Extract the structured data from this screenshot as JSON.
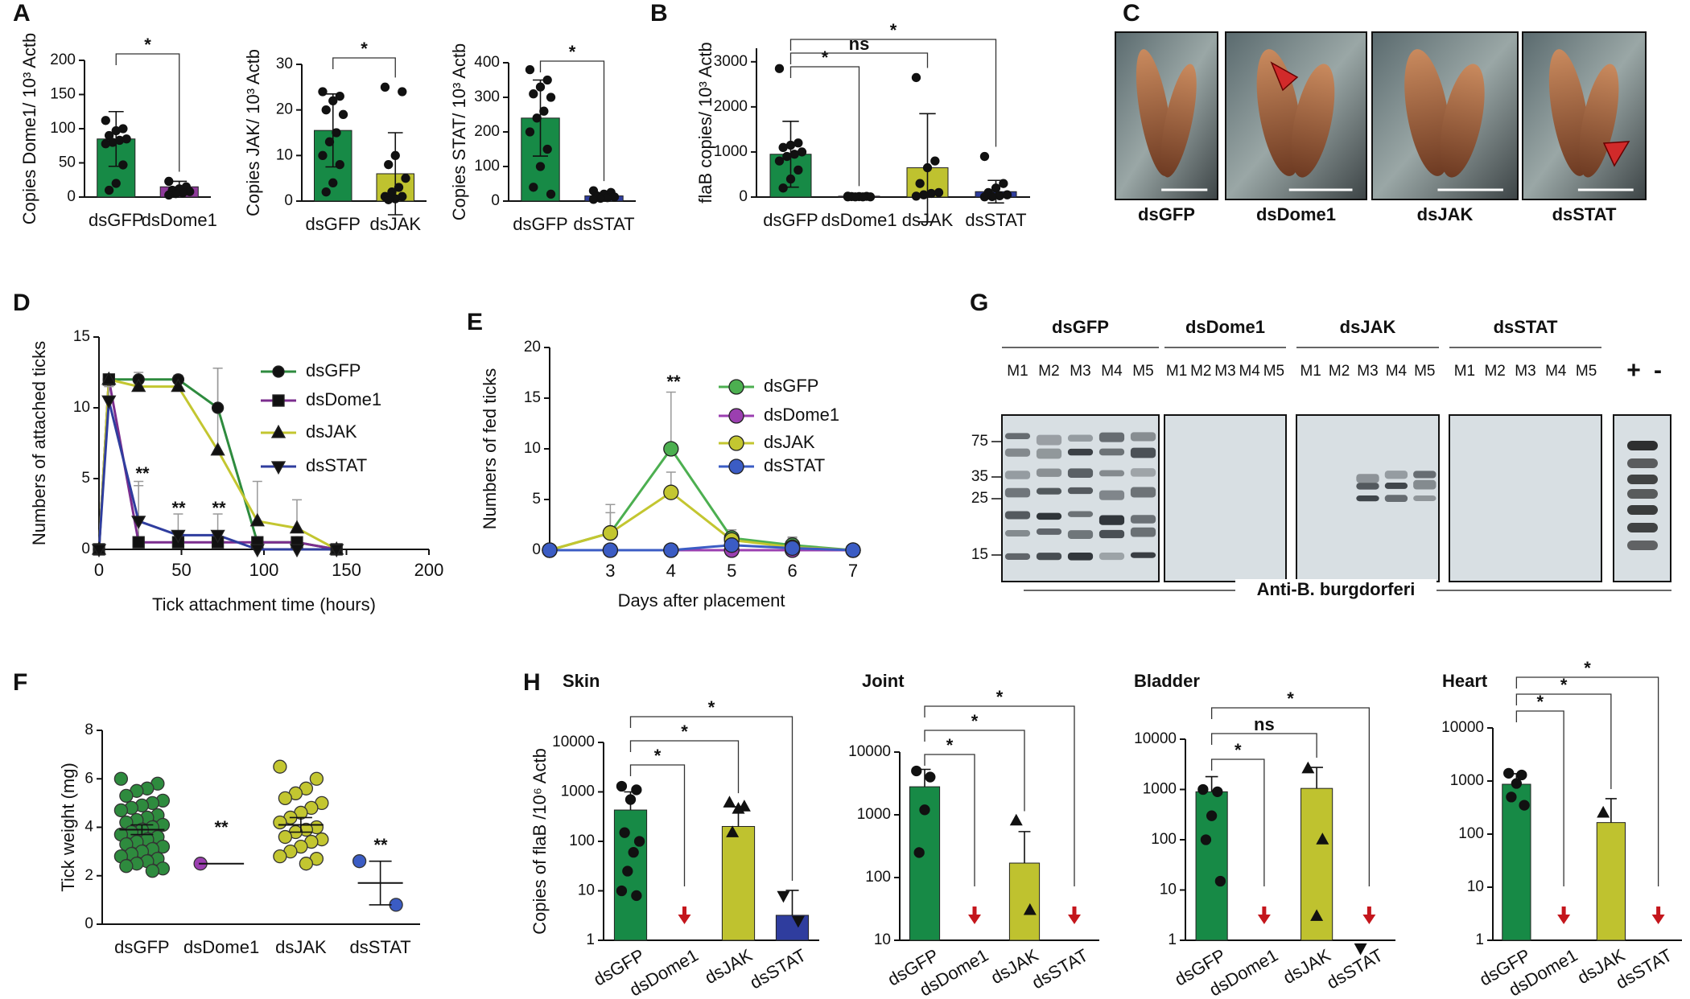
{
  "chart_data": [
    {
      "type": "bar",
      "panel": "A",
      "ylabel": "Copies Dome1/ 10³ Actb",
      "categories": [
        "dsGFP",
        "dsDome1"
      ],
      "values": [
        85,
        15
      ],
      "errors": [
        40,
        8
      ],
      "colors": [
        "#178a46",
        "#8e3a9a"
      ],
      "points": [
        [
          112,
          100,
          97,
          90,
          85,
          83,
          80,
          78,
          47,
          20,
          10
        ],
        [
          23,
          15,
          12,
          10,
          8,
          6,
          5,
          3
        ]
      ],
      "ylim": [
        0,
        200
      ],
      "yticks": [
        0,
        50,
        100,
        150,
        200
      ],
      "brackets": [
        "*"
      ]
    },
    {
      "type": "bar",
      "ylabel": "Copies JAK/ 10³ Actb",
      "categories": [
        "dsGFP",
        "dsJAK"
      ],
      "values": [
        15.5,
        6
      ],
      "errors": [
        8,
        9
      ],
      "colors": [
        "#178a46",
        "#bfc22f"
      ],
      "points": [
        [
          24,
          23,
          22,
          20,
          19,
          15,
          13,
          10,
          8,
          4,
          2
        ],
        [
          25,
          24,
          10,
          8,
          5,
          3,
          2,
          1,
          1,
          0.5,
          0.3
        ]
      ],
      "ylim": [
        0,
        30
      ],
      "yticks": [
        0,
        10,
        20,
        30
      ],
      "brackets": [
        "*"
      ]
    },
    {
      "type": "bar",
      "ylabel": "Copies STAT/ 10³ Actb",
      "categories": [
        "dsGFP",
        "dsSTAT"
      ],
      "values": [
        240,
        15
      ],
      "errors": [
        110,
        8
      ],
      "colors": [
        "#178a46",
        "#2f3d9e"
      ],
      "points": [
        [
          380,
          350,
          330,
          310,
          300,
          260,
          240,
          200,
          150,
          100,
          40,
          20
        ],
        [
          30,
          25,
          20,
          15,
          12,
          10,
          8,
          5
        ]
      ],
      "ylim": [
        0,
        400
      ],
      "yticks": [
        0,
        100,
        200,
        300,
        400
      ],
      "brackets": [
        "*"
      ]
    },
    {
      "type": "bar",
      "panel": "B",
      "ylabel": "flaB copies/ 10³ Actb",
      "categories": [
        "dsGFP",
        "dsDome1",
        "dsJAK",
        "dsSTAT"
      ],
      "values": [
        950,
        20,
        650,
        120
      ],
      "errors": [
        730,
        10,
        1200,
        250
      ],
      "colors": [
        "#178a46",
        "#8e3a9a",
        "#bfc22f",
        "#2f3d9e"
      ],
      "points": [
        [
          2850,
          1200,
          1150,
          1100,
          1000,
          950,
          900,
          800,
          600,
          400,
          200
        ],
        [
          20,
          15,
          10,
          10,
          5,
          5,
          5,
          5
        ],
        [
          2650,
          800,
          650,
          300,
          100,
          80,
          50,
          20
        ],
        [
          900,
          300,
          200,
          100,
          50,
          30,
          10,
          5
        ]
      ],
      "ylim": [
        0,
        3300
      ],
      "yticks": [
        0,
        1000,
        2000,
        3000
      ],
      "brackets": [
        "*",
        "ns",
        "*"
      ]
    },
    {
      "type": "line",
      "panel": "D",
      "ylabel": "Numbers of attached ticks",
      "xlabel": "Tick attachment time (hours)",
      "x": [
        0,
        6,
        24,
        48,
        72,
        96,
        120,
        144
      ],
      "xlim": [
        0,
        200
      ],
      "xticks": [
        0,
        50,
        100,
        150,
        200
      ],
      "ylim": [
        0,
        15
      ],
      "yticks": [
        0,
        5,
        10,
        15
      ],
      "marker_fill": "#111111",
      "series": [
        {
          "name": "dsGFP",
          "color": "#2e8b3e",
          "marker": "circle",
          "values": [
            0,
            12,
            12,
            12,
            10,
            0.5,
            0.5,
            0
          ],
          "errors": [
            null,
            0.3,
            0.5,
            0.3,
            2.8,
            null,
            null,
            null
          ]
        },
        {
          "name": "dsDome1",
          "color": "#7b2d8e",
          "marker": "square",
          "values": [
            0,
            12,
            0.5,
            0.5,
            0.5,
            0.5,
            0.5,
            0
          ],
          "errors": [
            null,
            0.3,
            4.3,
            null,
            null,
            null,
            null,
            null
          ]
        },
        {
          "name": "dsJAK",
          "color": "#c3c630",
          "marker": "triangle",
          "values": [
            0,
            12,
            11.5,
            11.5,
            7,
            2,
            1.5,
            0
          ],
          "errors": [
            null,
            0.3,
            0.6,
            0.5,
            5.8,
            2.8,
            2,
            null
          ]
        },
        {
          "name": "dsSTAT",
          "color": "#2f3d9e",
          "marker": "triangle-down",
          "values": [
            0,
            10.5,
            2,
            1,
            1,
            0,
            0,
            0
          ],
          "errors": [
            null,
            1,
            2.5,
            1.5,
            1.5,
            null,
            null,
            null
          ]
        }
      ],
      "annotations": [
        "**",
        "**",
        "**"
      ]
    },
    {
      "type": "line",
      "panel": "E",
      "ylabel": "Numbers of fed ticks",
      "xlabel": "Days after placement",
      "x": [
        2,
        3,
        4,
        5,
        6,
        7
      ],
      "xlim": [
        2,
        7
      ],
      "xticks": [
        3,
        4,
        5,
        6,
        7
      ],
      "ylim": [
        0,
        20
      ],
      "yticks": [
        0,
        5,
        10,
        15,
        20
      ],
      "series": [
        {
          "name": "dsGFP",
          "color": "#4caf50",
          "marker": "circle",
          "values": [
            0,
            1.7,
            10,
            1.2,
            0.5,
            0
          ],
          "errors": [
            null,
            2.8,
            5.6,
            0.8,
            0.7,
            null
          ]
        },
        {
          "name": "dsDome1",
          "color": "#9b3fb0",
          "marker": "circle",
          "values": [
            0,
            0,
            0,
            0,
            0,
            0
          ],
          "errors": [
            null,
            null,
            null,
            null,
            null,
            null
          ]
        },
        {
          "name": "dsJAK",
          "color": "#c3c630",
          "marker": "circle",
          "values": [
            0,
            1.7,
            5.7,
            1,
            0.3,
            0
          ],
          "errors": [
            null,
            2,
            2,
            0.7,
            1,
            null
          ]
        },
        {
          "name": "dsSTAT",
          "color": "#3b5cc4",
          "marker": "circle",
          "values": [
            0,
            0,
            0,
            0.5,
            0.2,
            0
          ],
          "errors": [
            null,
            null,
            null,
            0.5,
            0.6,
            null
          ]
        }
      ],
      "annotations": [
        "**"
      ]
    },
    {
      "type": "strip",
      "panel": "F",
      "ylabel": "Tick weight (mg)",
      "categories": [
        "dsGFP",
        "dsDome1",
        "dsJAK",
        "dsSTAT"
      ],
      "colors": [
        "#2e8b3e",
        "#9b3fb0",
        "#c3c630",
        "#3b5cc4"
      ],
      "values": [
        3.9,
        2.5,
        4.1,
        1.7
      ],
      "errors": [
        0.2,
        null,
        0.3,
        0.9
      ],
      "points": [
        [
          6,
          5.8,
          5.6,
          5.5,
          5.3,
          5.1,
          5,
          4.9,
          4.8,
          4.7,
          4.5,
          4.4,
          4.3,
          4.2,
          4.1,
          4,
          3.9,
          3.8,
          3.7,
          3.6,
          3.5,
          3.4,
          3.3,
          3.2,
          3.1,
          3,
          2.9,
          2.8,
          2.7,
          2.6,
          2.5,
          2.4,
          2.3,
          2.2
        ],
        [
          2.5
        ],
        [
          6.5,
          6,
          5.6,
          5.4,
          5.2,
          5,
          4.8,
          4.6,
          4.4,
          4.2,
          4,
          3.9,
          3.8,
          3.6,
          3.5,
          3.4,
          3.2,
          3,
          2.8,
          2.7,
          2.5
        ],
        [
          2.6,
          0.8
        ]
      ],
      "ylim": [
        0,
        8
      ],
      "yticks": [
        0,
        2,
        4,
        6,
        8
      ],
      "annotations": [
        "**",
        "**"
      ]
    },
    {
      "type": "bar",
      "panel": "H",
      "title": "Skin",
      "log": true,
      "ylabel": "Copies of flaB /10⁶ Actb",
      "categories": [
        "dsGFP",
        "dsDome1",
        "dsJAK",
        "dsSTAT"
      ],
      "values": [
        430,
        null,
        200,
        3.2
      ],
      "errors": [
        570,
        null,
        300,
        7
      ],
      "colors": [
        "#178a46",
        "#8e3a9a",
        "#bfc22f",
        "#2f3d9e"
      ],
      "markers": [
        "circle",
        "circle",
        "triangle",
        "triangle-down"
      ],
      "points": [
        [
          1300,
          1100,
          700,
          150,
          100,
          60,
          25,
          10,
          8
        ],
        [],
        [
          600,
          500,
          450,
          150
        ],
        [
          8,
          2.5
        ]
      ],
      "ylim": [
        1,
        10000
      ],
      "yticks": [
        1,
        10,
        100,
        1000,
        10000
      ],
      "brackets": [
        "*",
        "*",
        "*"
      ]
    },
    {
      "type": "bar",
      "title": "Joint",
      "log": true,
      "categories": [
        "dsGFP",
        "dsDome1",
        "dsJAK",
        "dsSTAT"
      ],
      "values": [
        2800,
        null,
        170,
        null
      ],
      "errors": [
        2500,
        null,
        370,
        null
      ],
      "colors": [
        "#178a46",
        "#8e3a9a",
        "#bfc22f",
        "#2f3d9e"
      ],
      "markers": [
        "circle",
        "circle",
        "triangle",
        "triangle-down"
      ],
      "points": [
        [
          5000,
          4000,
          1200,
          250
        ],
        [],
        [
          800,
          30
        ],
        []
      ],
      "ylim": [
        10,
        10000
      ],
      "yticks": [
        10,
        100,
        1000,
        10000
      ],
      "brackets": [
        "*",
        "*",
        "*"
      ]
    },
    {
      "type": "bar",
      "title": "Bladder",
      "log": true,
      "categories": [
        "dsGFP",
        "dsDome1",
        "dsJAK",
        "dsSTAT"
      ],
      "values": [
        900,
        null,
        1050,
        null
      ],
      "errors": [
        900,
        null,
        1700,
        null
      ],
      "colors": [
        "#178a46",
        "#8e3a9a",
        "#bfc22f",
        "#2f3d9e"
      ],
      "markers": [
        "circle",
        "circle",
        "triangle",
        "triangle-down"
      ],
      "points": [
        [
          1000,
          900,
          300,
          100,
          15
        ],
        [],
        [
          2600,
          100,
          3
        ],
        [
          0.7
        ]
      ],
      "ylim": [
        1,
        10000
      ],
      "yticks": [
        1,
        10,
        100,
        1000,
        10000
      ],
      "brackets": [
        "*",
        "ns",
        "*"
      ]
    },
    {
      "type": "bar",
      "title": "Heart",
      "log": true,
      "categories": [
        "dsGFP",
        "dsDome1",
        "dsJAK",
        "dsSTAT"
      ],
      "values": [
        870,
        null,
        165,
        null
      ],
      "errors": [
        500,
        null,
        300,
        null
      ],
      "colors": [
        "#178a46",
        "#8e3a9a",
        "#bfc22f",
        "#2f3d9e"
      ],
      "markers": [
        "circle",
        "circle",
        "triangle",
        "triangle-down"
      ],
      "points": [
        [
          1400,
          1300,
          900,
          500,
          350
        ],
        [],
        [
          250
        ],
        []
      ],
      "ylim": [
        1,
        10000
      ],
      "yticks": [
        1,
        10,
        100,
        1000,
        10000
      ],
      "brackets": [
        "*",
        "*",
        "*"
      ]
    }
  ],
  "panel_c": {
    "panel": "C",
    "labels": [
      "dsGFP",
      "dsDome1",
      "dsJAK",
      "dsSTAT"
    ]
  },
  "panel_g": {
    "panel": "G",
    "groups": [
      {
        "name": "dsGFP",
        "lanes": [
          "M1",
          "M2",
          "M3",
          "M4",
          "M5"
        ]
      },
      {
        "name": "dsDome1",
        "lanes": [
          "M1",
          "M2",
          "M3",
          "M4",
          "M5"
        ]
      },
      {
        "name": "dsJAK",
        "lanes": [
          "M1",
          "M2",
          "M3",
          "M4",
          "M5"
        ]
      },
      {
        "name": "dsSTAT",
        "lanes": [
          "M1",
          "M2",
          "M3",
          "M4",
          "M5"
        ]
      }
    ],
    "controls": [
      "+",
      "-"
    ],
    "markers": [
      "75",
      "35",
      "25",
      "15"
    ],
    "caption": "Anti-B. burgdorferi"
  }
}
